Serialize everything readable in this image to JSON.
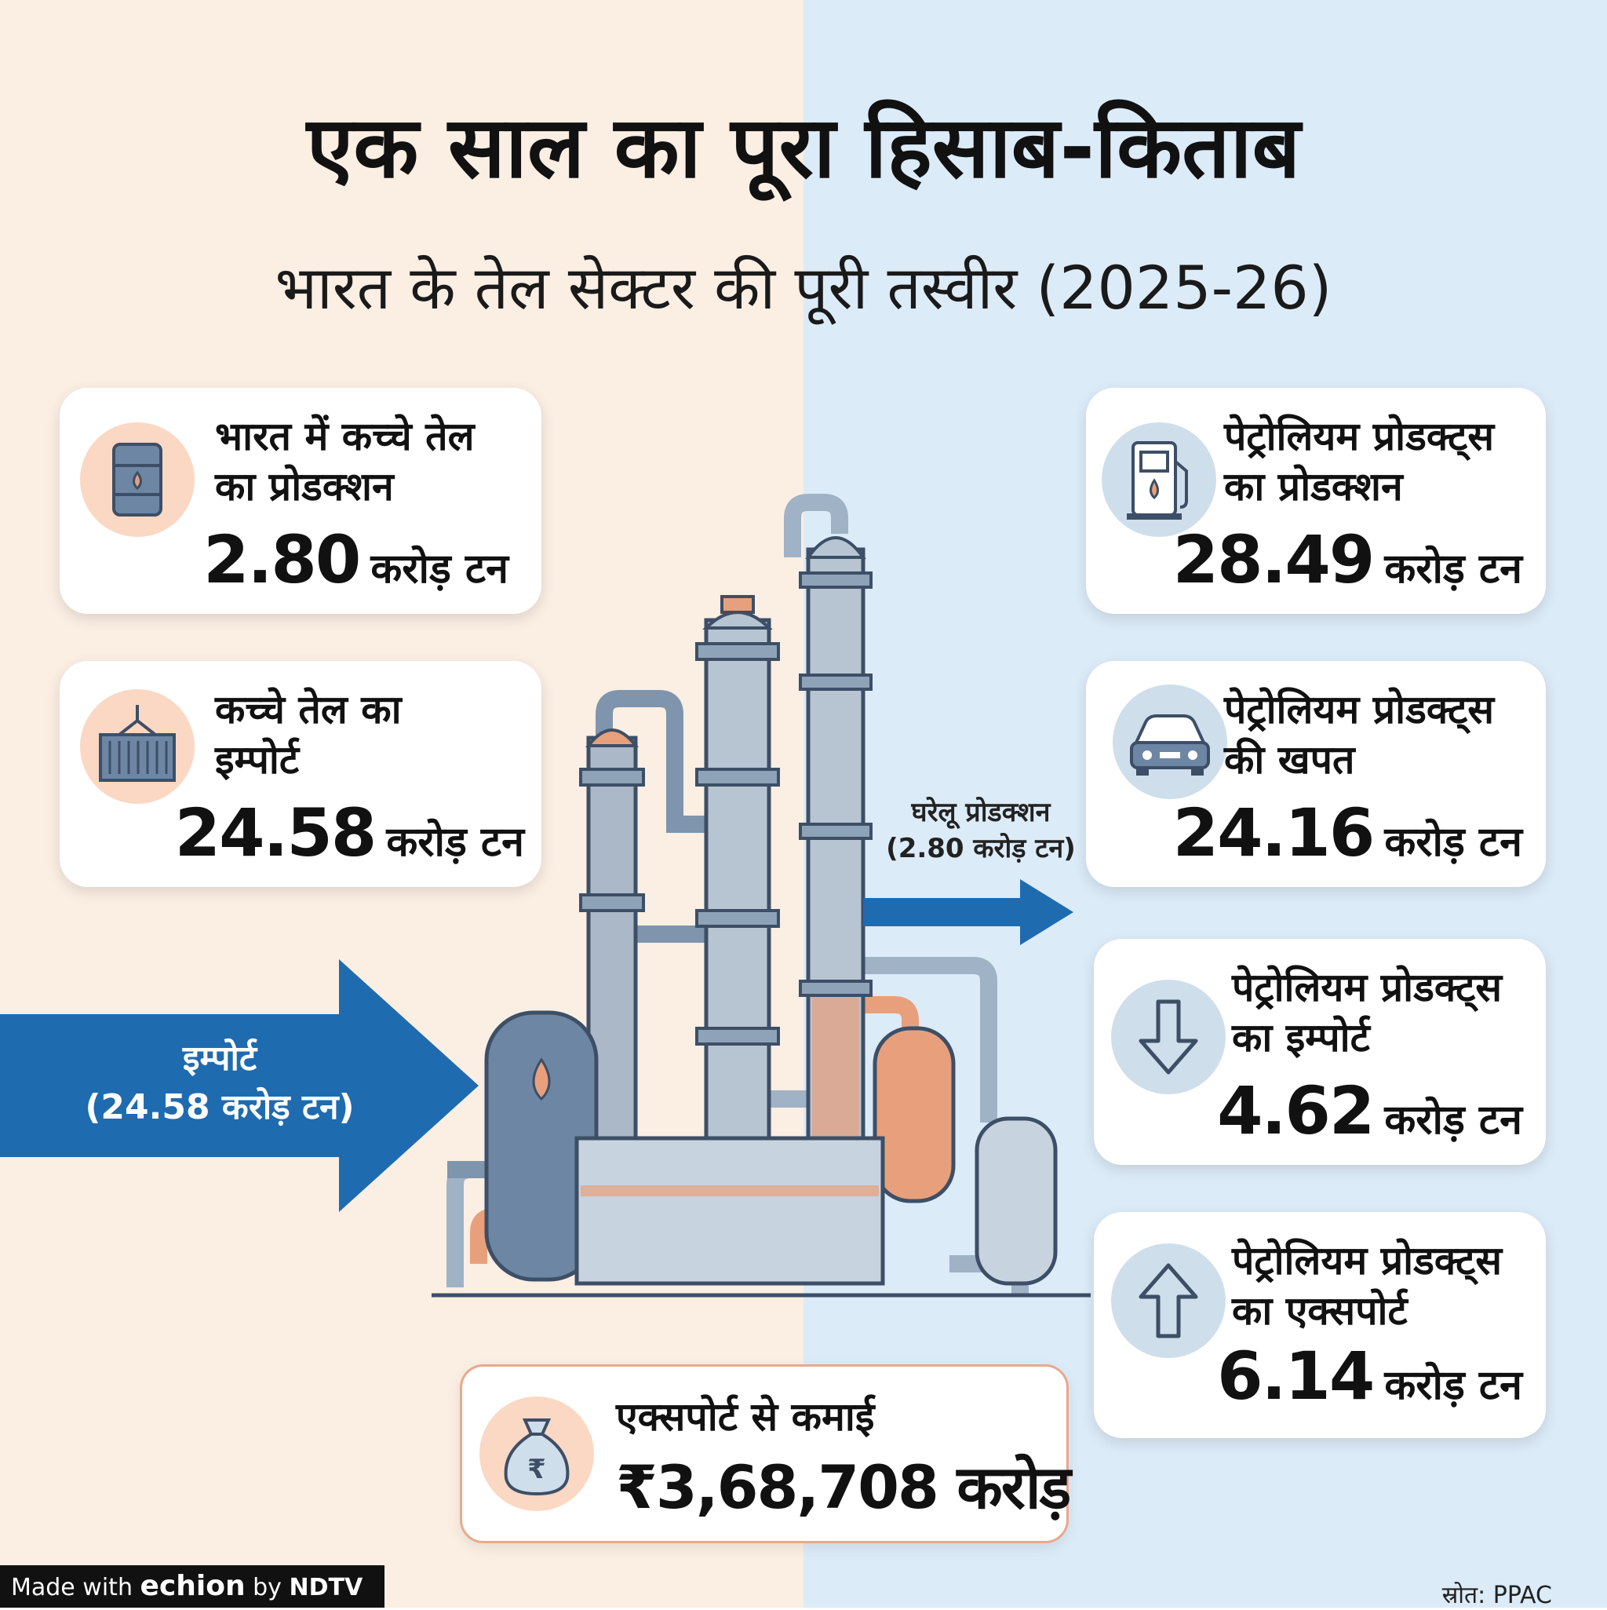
{
  "title": "एक साल का पूरा हिसाब-किताब",
  "subtitle": "भारत के तेल सेक्टर की पूरी तस्वीर (2025-26)",
  "cards": {
    "crude_production": {
      "label_line1": "भारत में कच्चे तेल",
      "label_line2": "का प्रोडक्शन",
      "value": "2.80",
      "unit": "करोड़ टन",
      "icon": "oil-barrel-icon"
    },
    "crude_import": {
      "label_line1": "कच्चे तेल का",
      "label_line2": "इम्पोर्ट",
      "value": "24.58",
      "unit": "करोड़ टन",
      "icon": "shipping-container-icon"
    },
    "products_production": {
      "label_line1": "पेट्रोलियम प्रोडक्ट्स",
      "label_line2": "का प्रोडक्शन",
      "value": "28.49",
      "unit": "करोड़ टन",
      "icon": "fuel-pump-icon"
    },
    "products_consumption": {
      "label_line1": "पेट्रोलियम प्रोडक्ट्स",
      "label_line2": "की खपत",
      "value": "24.16",
      "unit": "करोड़ टन",
      "icon": "car-icon"
    },
    "products_import": {
      "label_line1": "पेट्रोलियम प्रोडक्ट्स",
      "label_line2": "का इम्पोर्ट",
      "value": "4.62",
      "unit": "करोड़ टन",
      "icon": "down-arrow-icon"
    },
    "products_export": {
      "label_line1": "पेट्रोलियम प्रोडक्ट्स",
      "label_line2": "का एक्सपोर्ट",
      "value": "6.14",
      "unit": "करोड़ टन",
      "icon": "up-arrow-icon"
    }
  },
  "import_arrow": {
    "line1": "इम्पोर्ट",
    "line2": "(24.58 करोड़ टन)"
  },
  "domestic_arrow": {
    "line1": "घरेलू प्रोडक्शन",
    "line2": "(2.80 करोड़ टन)"
  },
  "earnings": {
    "label": "एक्सपोर्ट से कमाई",
    "value": "₹3,68,708 करोड़",
    "icon": "money-bag-rupee-icon"
  },
  "source": "स्रोत: PPAC",
  "badge": {
    "made_with": "Made with",
    "brand": "echion",
    "by": "by",
    "ndtv": "NDTV"
  },
  "colors": {
    "left_bg": "#fbeee3",
    "right_bg": "#dcebf8",
    "arrow_blue": "#1f6bb0",
    "accent_orange": "#e8a07c"
  }
}
